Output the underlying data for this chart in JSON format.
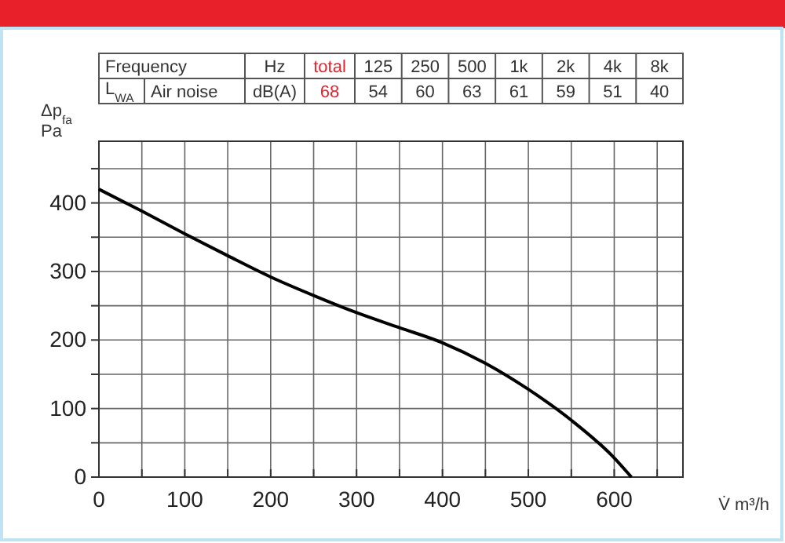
{
  "chart_data": [
    {
      "type": "other",
      "xlabel": "Frequency",
      "ylabel": "L$_{WA}$",
      "annotations": [
        "Air noise",
        "Hz",
        "dB(A)"
      ],
      "categories": [
        "total",
        "125",
        "250",
        "500",
        "1k",
        "2k",
        "4k",
        "8k"
      ],
      "values": [
        68,
        54,
        60,
        63,
        61,
        59,
        51,
        40
      ],
      "colors": [
        "#e8202a",
        "#333333",
        "#333333",
        "#333333",
        "#333333",
        "#333333",
        "#333333",
        "#333333"
      ],
      "data_labels": true
    },
    {
      "type": "line",
      "xlabel": "V̇ m³/h",
      "ylabel": "Δp$_{fa}$ Pa",
      "x": [
        0,
        50,
        100,
        150,
        200,
        250,
        300,
        350,
        400,
        450,
        500,
        550,
        600,
        620
      ],
      "series": [
        {
          "color": "#000000",
          "values": [
            420,
            388,
            355,
            323,
            292,
            265,
            240,
            218,
            196,
            166,
            128,
            83,
            28,
            0
          ]
        }
      ],
      "xlim": [
        0,
        680
      ],
      "ylim": [
        0,
        490
      ],
      "xticks": [
        0,
        {
          "value": 50,
          "label": null
        },
        100,
        {
          "value": 150,
          "label": null
        },
        200,
        {
          "value": 250,
          "label": null
        },
        300,
        {
          "value": 350,
          "label": null
        },
        400,
        {
          "value": 450,
          "label": null
        },
        500,
        {
          "value": 550,
          "label": null
        },
        600,
        {
          "value": 650,
          "label": null
        }
      ],
      "yticks": [
        0,
        {
          "value": 50,
          "label": null
        },
        100,
        {
          "value": 150,
          "label": null
        },
        200,
        {
          "value": 250,
          "label": null
        },
        300,
        {
          "value": 350,
          "label": null
        },
        400,
        {
          "value": 450,
          "label": null
        }
      ],
      "grid": true
    }
  ]
}
